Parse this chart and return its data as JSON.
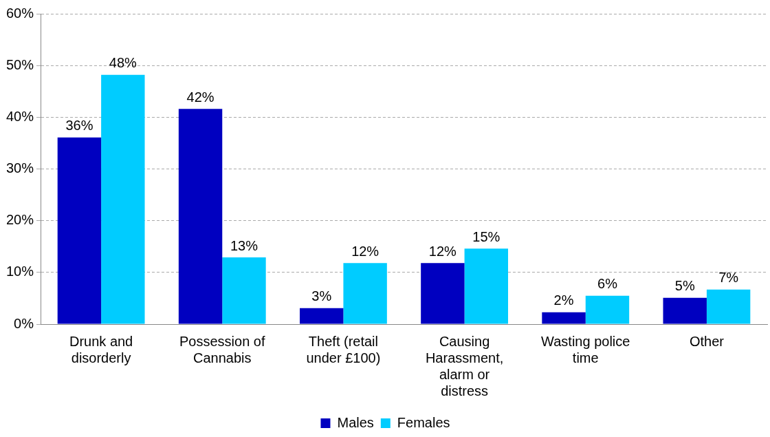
{
  "chart_data": {
    "type": "bar",
    "categories": [
      "Drunk and disorderly",
      "Possession of Cannabis",
      "Theft (retail under £100)",
      "Causing Harassment, alarm or distress",
      "Wasting police time",
      "Other"
    ],
    "series": [
      {
        "name": "Males",
        "color": "#0000c0",
        "values": [
          36.1,
          41.6,
          3.1,
          11.8,
          2.3,
          5.1
        ],
        "value_labels": [
          "36%",
          "42%",
          "3%",
          "12%",
          "2%",
          "5%"
        ]
      },
      {
        "name": "Females",
        "color": "#00ccff",
        "values": [
          48.2,
          12.9,
          11.8,
          14.6,
          5.5,
          6.7
        ],
        "value_labels": [
          "48%",
          "13%",
          "12%",
          "15%",
          "6%",
          "7%"
        ]
      }
    ],
    "ylim": [
      0,
      60
    ],
    "yticks": [
      {
        "value": 0,
        "label": "0%"
      },
      {
        "value": 10,
        "label": "10%"
      },
      {
        "value": 20,
        "label": "20%"
      },
      {
        "value": 30,
        "label": "30%"
      },
      {
        "value": 40,
        "label": "40%"
      },
      {
        "value": 50,
        "label": "50%"
      },
      {
        "value": 60,
        "label": "60%"
      }
    ],
    "grid": "y",
    "legend": "bottom"
  }
}
